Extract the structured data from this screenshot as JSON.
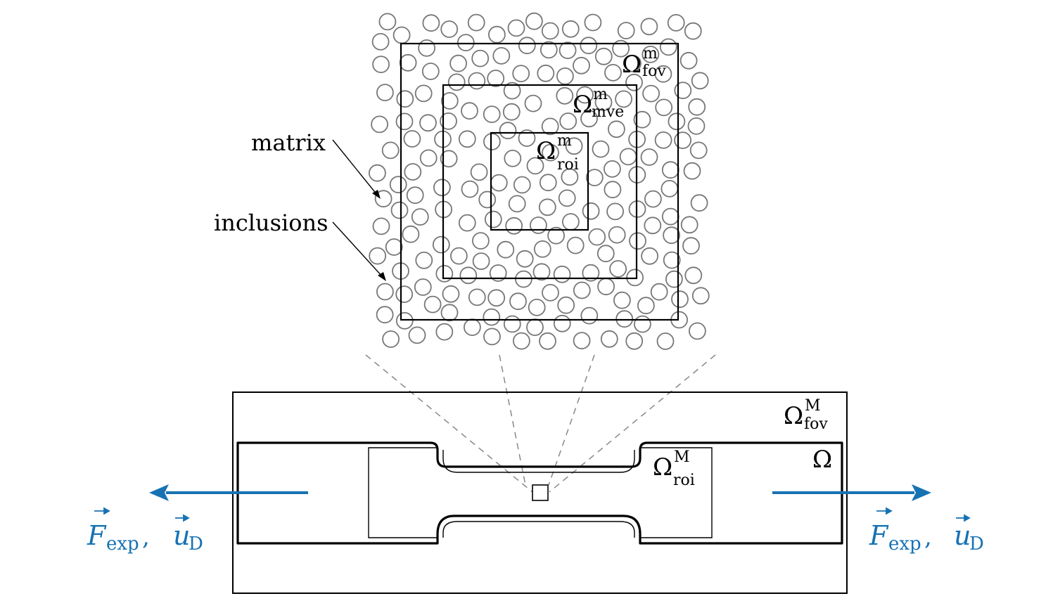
{
  "labels": {
    "matrix": "matrix",
    "inclusions": "inclusions",
    "fov_micro": {
      "symbol": "Ω",
      "sup": "m",
      "sub": "fov"
    },
    "mve_micro": {
      "symbol": "Ω",
      "sup": "m",
      "sub": "mve"
    },
    "roi_micro": {
      "symbol": "Ω",
      "sup": "m",
      "sub": "roi"
    },
    "fov_macro": {
      "symbol": "Ω",
      "sup": "M",
      "sub": "fov"
    },
    "roi_macro": {
      "symbol": "Ω",
      "sup": "M",
      "sub": "roi"
    },
    "domain": "Ω",
    "load_left": {
      "force": "F",
      "force_sub": "exp",
      "sep": ",",
      "disp": "u",
      "disp_sub": "D"
    },
    "load_right": {
      "force": "F",
      "force_sub": "exp",
      "sep": ",",
      "disp": "u",
      "disp_sub": "D"
    }
  },
  "colors": {
    "line": "#000000",
    "inclusion_stroke": "#777777",
    "dash": "#888888",
    "accent": "#1772b4"
  }
}
